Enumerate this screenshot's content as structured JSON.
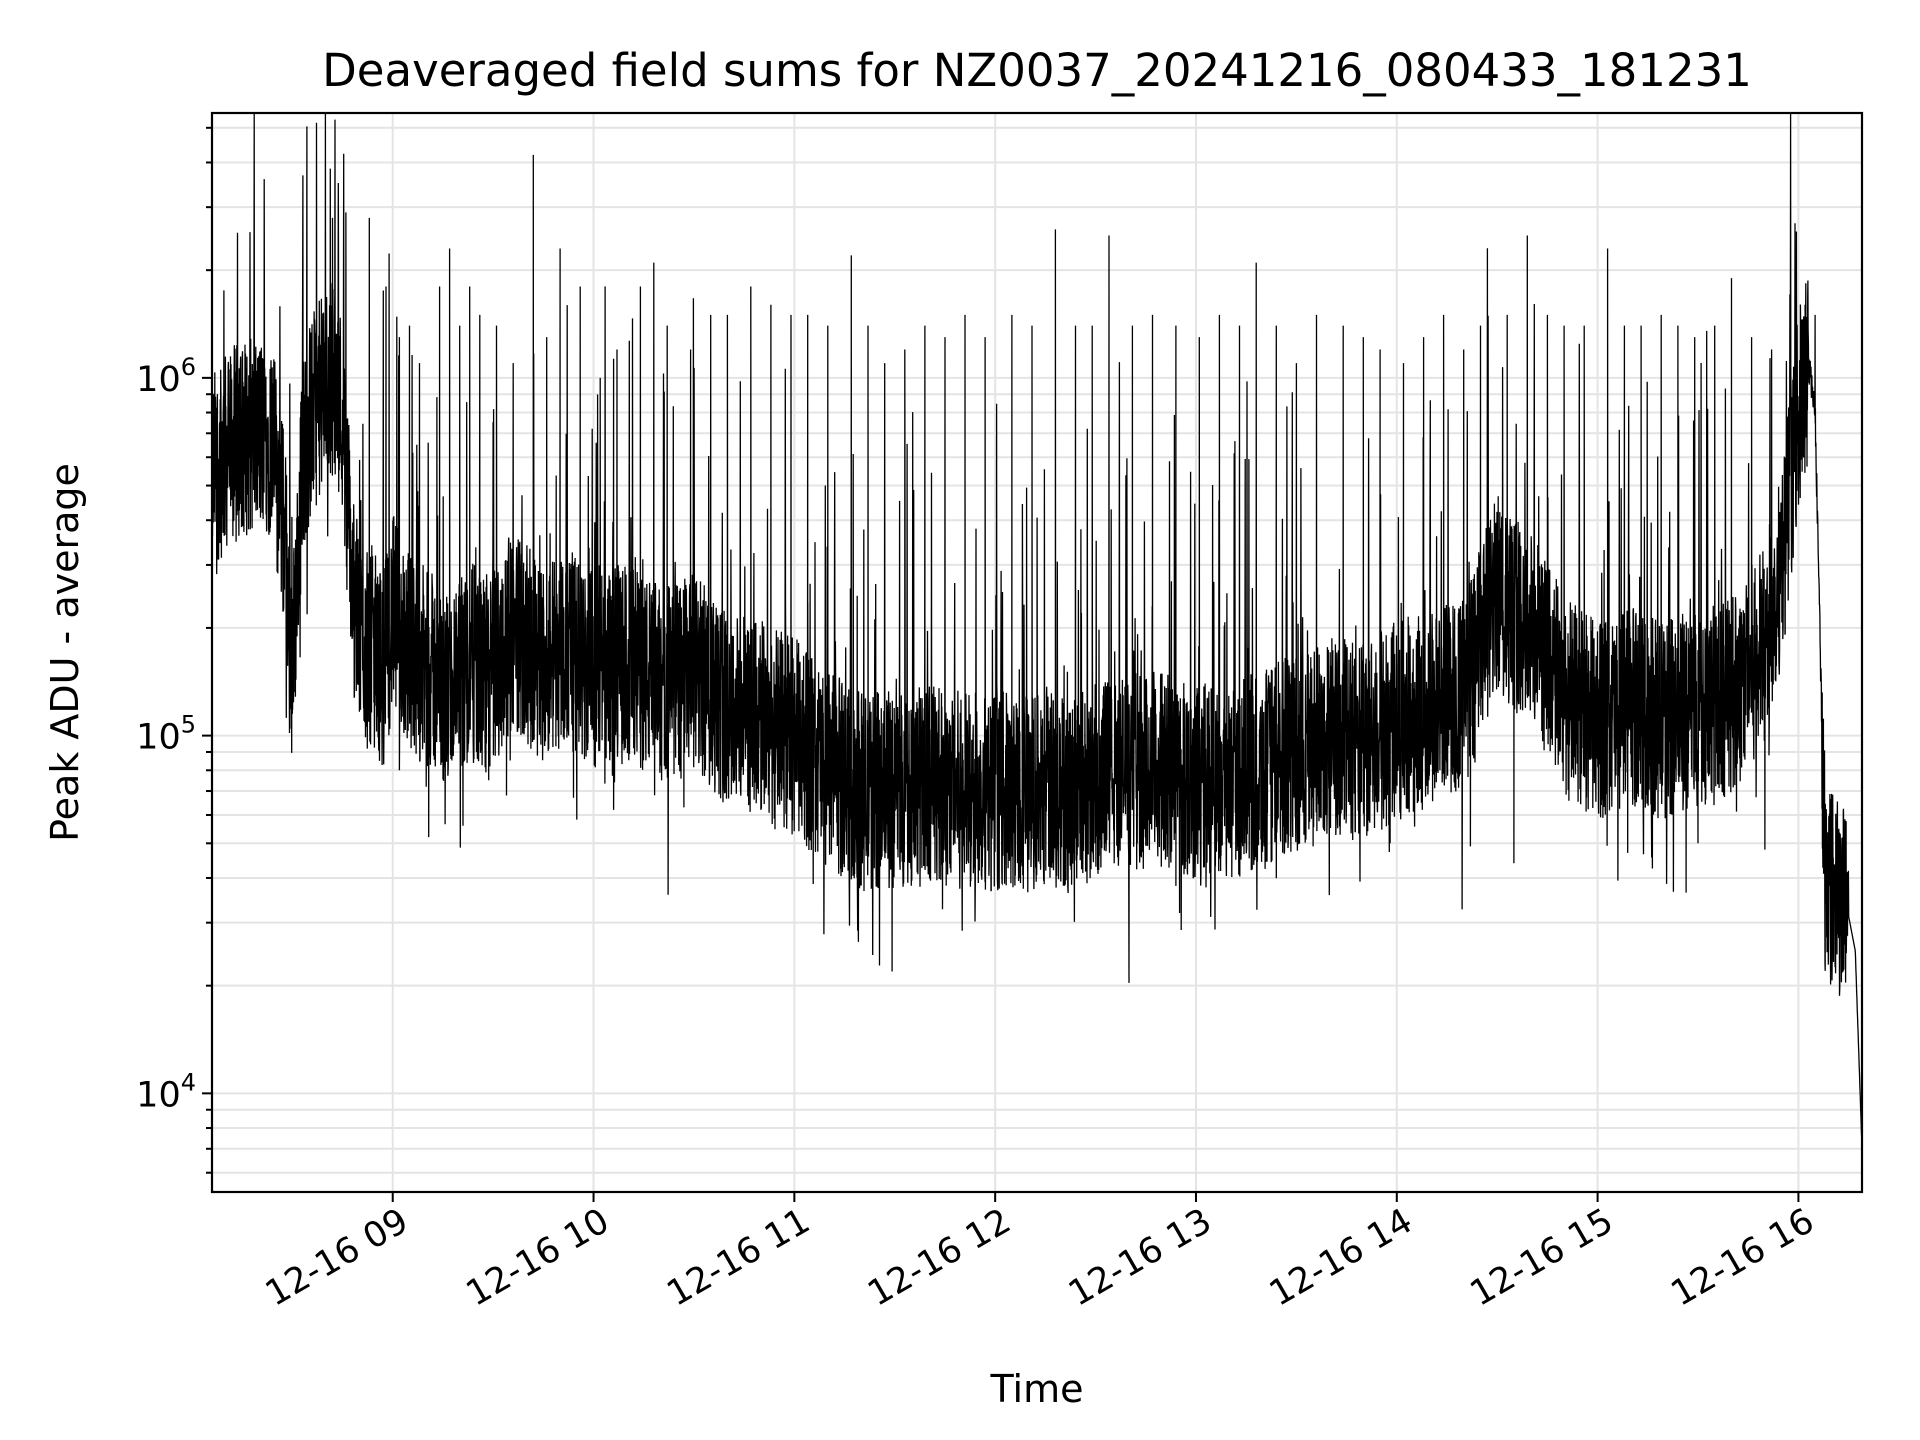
{
  "chart_data": {
    "type": "line",
    "title": "Deaveraged field sums for NZ0037_20241216_080433_181231",
    "xlabel": "Time",
    "ylabel": "Peak ADU - average",
    "yscale": "log",
    "ylim": [
      5300,
      5500000
    ],
    "xlim": [
      "2024-12-16 08:06",
      "2024-12-16 16:19"
    ],
    "grid": true,
    "x_ticks": [
      {
        "t": "2024-12-16 09:00",
        "label": "12-16 09"
      },
      {
        "t": "2024-12-16 10:00",
        "label": "12-16 10"
      },
      {
        "t": "2024-12-16 11:00",
        "label": "12-16 11"
      },
      {
        "t": "2024-12-16 12:00",
        "label": "12-16 12"
      },
      {
        "t": "2024-12-16 13:00",
        "label": "12-16 13"
      },
      {
        "t": "2024-12-16 14:00",
        "label": "12-16 14"
      },
      {
        "t": "2024-12-16 15:00",
        "label": "12-16 15"
      },
      {
        "t": "2024-12-16 16:00",
        "label": "12-16 16"
      }
    ],
    "y_ticks": [
      {
        "v": 10000,
        "base": "10",
        "exp": "4"
      },
      {
        "v": 100000,
        "base": "10",
        "exp": "5"
      },
      {
        "v": 1000000,
        "base": "10",
        "exp": "6"
      }
    ],
    "series": [
      {
        "color": "#000000",
        "x": [
          "2024-12-16 08:06",
          "2024-12-16 08:12",
          "2024-12-16 08:18",
          "2024-12-16 08:24",
          "2024-12-16 08:28",
          "2024-12-16 08:30",
          "2024-12-16 08:33",
          "2024-12-16 08:36",
          "2024-12-16 08:39",
          "2024-12-16 08:42",
          "2024-12-16 08:45",
          "2024-12-16 08:48",
          "2024-12-16 08:51",
          "2024-12-16 08:54",
          "2024-12-16 08:57",
          "2024-12-16 09:00",
          "2024-12-16 09:04",
          "2024-12-16 09:08",
          "2024-12-16 09:12",
          "2024-12-16 09:16",
          "2024-12-16 09:20",
          "2024-12-16 09:24",
          "2024-12-16 09:28",
          "2024-12-16 09:32",
          "2024-12-16 09:36",
          "2024-12-16 09:40",
          "2024-12-16 09:44",
          "2024-12-16 09:48",
          "2024-12-16 09:52",
          "2024-12-16 09:56",
          "2024-12-16 10:00",
          "2024-12-16 10:10",
          "2024-12-16 10:20",
          "2024-12-16 10:30",
          "2024-12-16 10:40",
          "2024-12-16 10:50",
          "2024-12-16 11:00",
          "2024-12-16 11:10",
          "2024-12-16 11:20",
          "2024-12-16 11:30",
          "2024-12-16 11:40",
          "2024-12-16 11:50",
          "2024-12-16 12:00",
          "2024-12-16 12:10",
          "2024-12-16 12:20",
          "2024-12-16 12:30",
          "2024-12-16 12:40",
          "2024-12-16 12:50",
          "2024-12-16 13:00",
          "2024-12-16 13:10",
          "2024-12-16 13:20",
          "2024-12-16 13:30",
          "2024-12-16 13:40",
          "2024-12-16 13:50",
          "2024-12-16 14:00",
          "2024-12-16 14:10",
          "2024-12-16 14:20",
          "2024-12-16 14:30",
          "2024-12-16 14:40",
          "2024-12-16 14:50",
          "2024-12-16 15:00",
          "2024-12-16 15:10",
          "2024-12-16 15:20",
          "2024-12-16 15:30",
          "2024-12-16 15:40",
          "2024-12-16 15:50",
          "2024-12-16 15:55",
          "2024-12-16 16:00",
          "2024-12-16 16:03",
          "2024-12-16 16:05",
          "2024-12-16 16:08",
          "2024-12-16 16:11",
          "2024-12-16 16:14",
          "2024-12-16 16:17",
          "2024-12-16 16:19"
        ],
        "y": [
          550000,
          650000,
          700000,
          680000,
          350000,
          150000,
          600000,
          800000,
          900000,
          1000000,
          800000,
          250000,
          180000,
          180000,
          150000,
          220000,
          180000,
          160000,
          150000,
          130000,
          140000,
          160000,
          140000,
          170000,
          200000,
          180000,
          160000,
          170000,
          180000,
          160000,
          150000,
          160000,
          140000,
          150000,
          120000,
          110000,
          100000,
          80000,
          70000,
          70000,
          75000,
          70000,
          70000,
          70000,
          70000,
          75000,
          80000,
          80000,
          75000,
          75000,
          80000,
          90000,
          100000,
          95000,
          110000,
          120000,
          130000,
          250000,
          200000,
          130000,
          110000,
          120000,
          110000,
          120000,
          130000,
          180000,
          300000,
          800000,
          1100000,
          800000,
          40000,
          36000,
          35000,
          25000,
          7000
        ],
        "spikes": [
          [
            "2024-12-16 08:37",
            1000000
          ],
          [
            "2024-12-16 08:42",
            2800000
          ],
          [
            "2024-12-16 08:46",
            2900000
          ],
          [
            "2024-12-16 08:53",
            2800000
          ],
          [
            "2024-12-16 08:58",
            1800000
          ],
          [
            "2024-12-16 09:02",
            1300000
          ],
          [
            "2024-12-16 09:05",
            1400000
          ],
          [
            "2024-12-16 09:08",
            1100000
          ],
          [
            "2024-12-16 09:14",
            1800000
          ],
          [
            "2024-12-16 09:17",
            2300000
          ],
          [
            "2024-12-16 09:20",
            1400000
          ],
          [
            "2024-12-16 09:23",
            1800000
          ],
          [
            "2024-12-16 09:26",
            1500000
          ],
          [
            "2024-12-16 09:31",
            1400000
          ],
          [
            "2024-12-16 09:36",
            1100000
          ],
          [
            "2024-12-16 09:42",
            4200000
          ],
          [
            "2024-12-16 09:46",
            1300000
          ],
          [
            "2024-12-16 09:50",
            2300000
          ],
          [
            "2024-12-16 09:56",
            1800000
          ],
          [
            "2024-12-16 10:02",
            1000000
          ],
          [
            "2024-12-16 10:07",
            1200000
          ],
          [
            "2024-12-16 10:14",
            1800000
          ],
          [
            "2024-12-16 10:18",
            2100000
          ],
          [
            "2024-12-16 10:22",
            1400000
          ],
          [
            "2024-12-16 10:29",
            1200000
          ],
          [
            "2024-12-16 10:35",
            1500000
          ],
          [
            "2024-12-16 10:40",
            1500000
          ],
          [
            "2024-12-16 10:47",
            1800000
          ],
          [
            "2024-12-16 10:53",
            1600000
          ],
          [
            "2024-12-16 10:59",
            1500000
          ],
          [
            "2024-12-16 11:04",
            1500000
          ],
          [
            "2024-12-16 11:10",
            1400000
          ],
          [
            "2024-12-16 11:17",
            2200000
          ],
          [
            "2024-12-16 11:22",
            1400000
          ],
          [
            "2024-12-16 11:27",
            1100000
          ],
          [
            "2024-12-16 11:33",
            1200000
          ],
          [
            "2024-12-16 11:39",
            1400000
          ],
          [
            "2024-12-16 11:45",
            1300000
          ],
          [
            "2024-12-16 11:51",
            1500000
          ],
          [
            "2024-12-16 11:57",
            1300000
          ],
          [
            "2024-12-16 12:05",
            1500000
          ],
          [
            "2024-12-16 12:11",
            1400000
          ],
          [
            "2024-12-16 12:18",
            2600000
          ],
          [
            "2024-12-16 12:24",
            1400000
          ],
          [
            "2024-12-16 12:29",
            1400000
          ],
          [
            "2024-12-16 12:34",
            2500000
          ],
          [
            "2024-12-16 12:41",
            1400000
          ],
          [
            "2024-12-16 12:47",
            1500000
          ],
          [
            "2024-12-16 12:54",
            1400000
          ],
          [
            "2024-12-16 13:01",
            1300000
          ],
          [
            "2024-12-16 13:07",
            1500000
          ],
          [
            "2024-12-16 13:13",
            1400000
          ],
          [
            "2024-12-16 13:18",
            2100000
          ],
          [
            "2024-12-16 13:24",
            1400000
          ],
          [
            "2024-12-16 13:30",
            1100000
          ],
          [
            "2024-12-16 13:36",
            1500000
          ],
          [
            "2024-12-16 13:44",
            1400000
          ],
          [
            "2024-12-16 13:50",
            1300000
          ],
          [
            "2024-12-16 13:55",
            1200000
          ],
          [
            "2024-12-16 14:02",
            1100000
          ],
          [
            "2024-12-16 14:08",
            1300000
          ],
          [
            "2024-12-16 14:14",
            1500000
          ],
          [
            "2024-12-16 14:20",
            1200000
          ],
          [
            "2024-12-16 14:25",
            1400000
          ],
          [
            "2024-12-16 14:33",
            1500000
          ],
          [
            "2024-12-16 14:39",
            2500000
          ],
          [
            "2024-12-16 14:45",
            1500000
          ],
          [
            "2024-12-16 14:50",
            1400000
          ],
          [
            "2024-12-16 14:56",
            1400000
          ],
          [
            "2024-12-16 15:03",
            2300000
          ],
          [
            "2024-12-16 15:08",
            1400000
          ],
          [
            "2024-12-16 15:13",
            1400000
          ],
          [
            "2024-12-16 15:19",
            1500000
          ],
          [
            "2024-12-16 15:24",
            1400000
          ],
          [
            "2024-12-16 15:29",
            1300000
          ],
          [
            "2024-12-16 15:35",
            1400000
          ],
          [
            "2024-12-16 15:40",
            1900000
          ],
          [
            "2024-12-16 15:46",
            1300000
          ],
          [
            "2024-12-16 15:52",
            1200000
          ],
          [
            "2024-12-16 16:02",
            1600000
          ],
          [
            "2024-12-16 16:05",
            1500000
          ],
          [
            "2024-12-16 16:10",
            50000
          ],
          [
            "2024-12-16 16:14",
            55000
          ]
        ],
        "dips": [
          [
            "2024-12-16 08:30",
            115000
          ],
          [
            "2024-12-16 09:02",
            80000
          ],
          [
            "2024-12-16 09:10",
            72000
          ],
          [
            "2024-12-16 09:21",
            56000
          ],
          [
            "2024-12-16 09:34",
            68000
          ],
          [
            "2024-12-16 09:54",
            67000
          ],
          [
            "2024-12-16 10:06",
            62000
          ],
          [
            "2024-12-16 10:27",
            63000
          ],
          [
            "2024-12-16 10:50",
            62000
          ],
          [
            "2024-12-16 11:04",
            52000
          ],
          [
            "2024-12-16 11:18",
            41000
          ],
          [
            "2024-12-16 11:26",
            45000
          ],
          [
            "2024-12-16 11:44",
            52000
          ],
          [
            "2024-12-16 12:05",
            50000
          ],
          [
            "2024-12-16 12:16",
            43000
          ],
          [
            "2024-12-16 12:33",
            50000
          ],
          [
            "2024-12-16 12:54",
            38000
          ],
          [
            "2024-12-16 13:10",
            50000
          ],
          [
            "2024-12-16 13:35",
            49000
          ],
          [
            "2024-12-16 13:58",
            50000
          ],
          [
            "2024-12-16 14:22",
            49000
          ],
          [
            "2024-12-16 14:35",
            44000
          ],
          [
            "2024-12-16 15:09",
            47000
          ],
          [
            "2024-12-16 15:30",
            50000
          ],
          [
            "2024-12-16 15:50",
            48000
          ],
          [
            "2024-12-16 16:08",
            22000
          ]
        ]
      }
    ]
  }
}
